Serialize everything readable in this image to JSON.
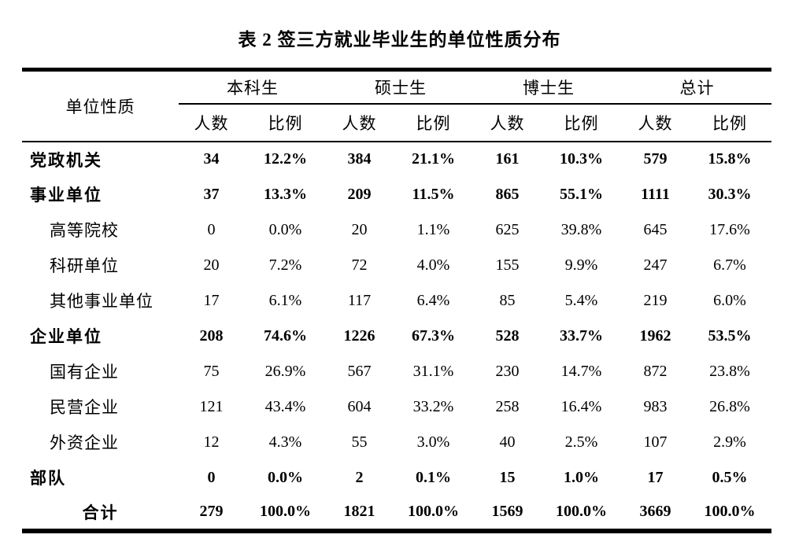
{
  "title": "表 2 签三方就业毕业生的单位性质分布",
  "colors": {
    "text": "#000000",
    "background": "#ffffff",
    "rule": "#000000"
  },
  "table": {
    "corner_header": "单位性质",
    "groups": [
      {
        "label": "本科生"
      },
      {
        "label": "硕士生"
      },
      {
        "label": "博士生"
      },
      {
        "label": "总计"
      }
    ],
    "sub_headers": [
      "人数",
      "比例"
    ],
    "rows": [
      {
        "label": "党政机关",
        "level": "category",
        "values": [
          "34",
          "12.2%",
          "384",
          "21.1%",
          "161",
          "10.3%",
          "579",
          "15.8%"
        ]
      },
      {
        "label": "事业单位",
        "level": "category",
        "values": [
          "37",
          "13.3%",
          "209",
          "11.5%",
          "865",
          "55.1%",
          "1111",
          "30.3%"
        ]
      },
      {
        "label": "高等院校",
        "level": "sub",
        "values": [
          "0",
          "0.0%",
          "20",
          "1.1%",
          "625",
          "39.8%",
          "645",
          "17.6%"
        ]
      },
      {
        "label": "科研单位",
        "level": "sub",
        "values": [
          "20",
          "7.2%",
          "72",
          "4.0%",
          "155",
          "9.9%",
          "247",
          "6.7%"
        ]
      },
      {
        "label": "其他事业单位",
        "level": "sub",
        "values": [
          "17",
          "6.1%",
          "117",
          "6.4%",
          "85",
          "5.4%",
          "219",
          "6.0%"
        ]
      },
      {
        "label": "企业单位",
        "level": "category",
        "values": [
          "208",
          "74.6%",
          "1226",
          "67.3%",
          "528",
          "33.7%",
          "1962",
          "53.5%"
        ]
      },
      {
        "label": "国有企业",
        "level": "sub",
        "values": [
          "75",
          "26.9%",
          "567",
          "31.1%",
          "230",
          "14.7%",
          "872",
          "23.8%"
        ]
      },
      {
        "label": "民营企业",
        "level": "sub",
        "values": [
          "121",
          "43.4%",
          "604",
          "33.2%",
          "258",
          "16.4%",
          "983",
          "26.8%"
        ]
      },
      {
        "label": "外资企业",
        "level": "sub",
        "values": [
          "12",
          "4.3%",
          "55",
          "3.0%",
          "40",
          "2.5%",
          "107",
          "2.9%"
        ]
      },
      {
        "label": "部队",
        "level": "category",
        "values": [
          "0",
          "0.0%",
          "2",
          "0.1%",
          "15",
          "1.0%",
          "17",
          "0.5%"
        ]
      },
      {
        "label": "合计",
        "level": "total",
        "values": [
          "279",
          "100.0%",
          "1821",
          "100.0%",
          "1569",
          "100.0%",
          "3669",
          "100.0%"
        ]
      }
    ]
  }
}
